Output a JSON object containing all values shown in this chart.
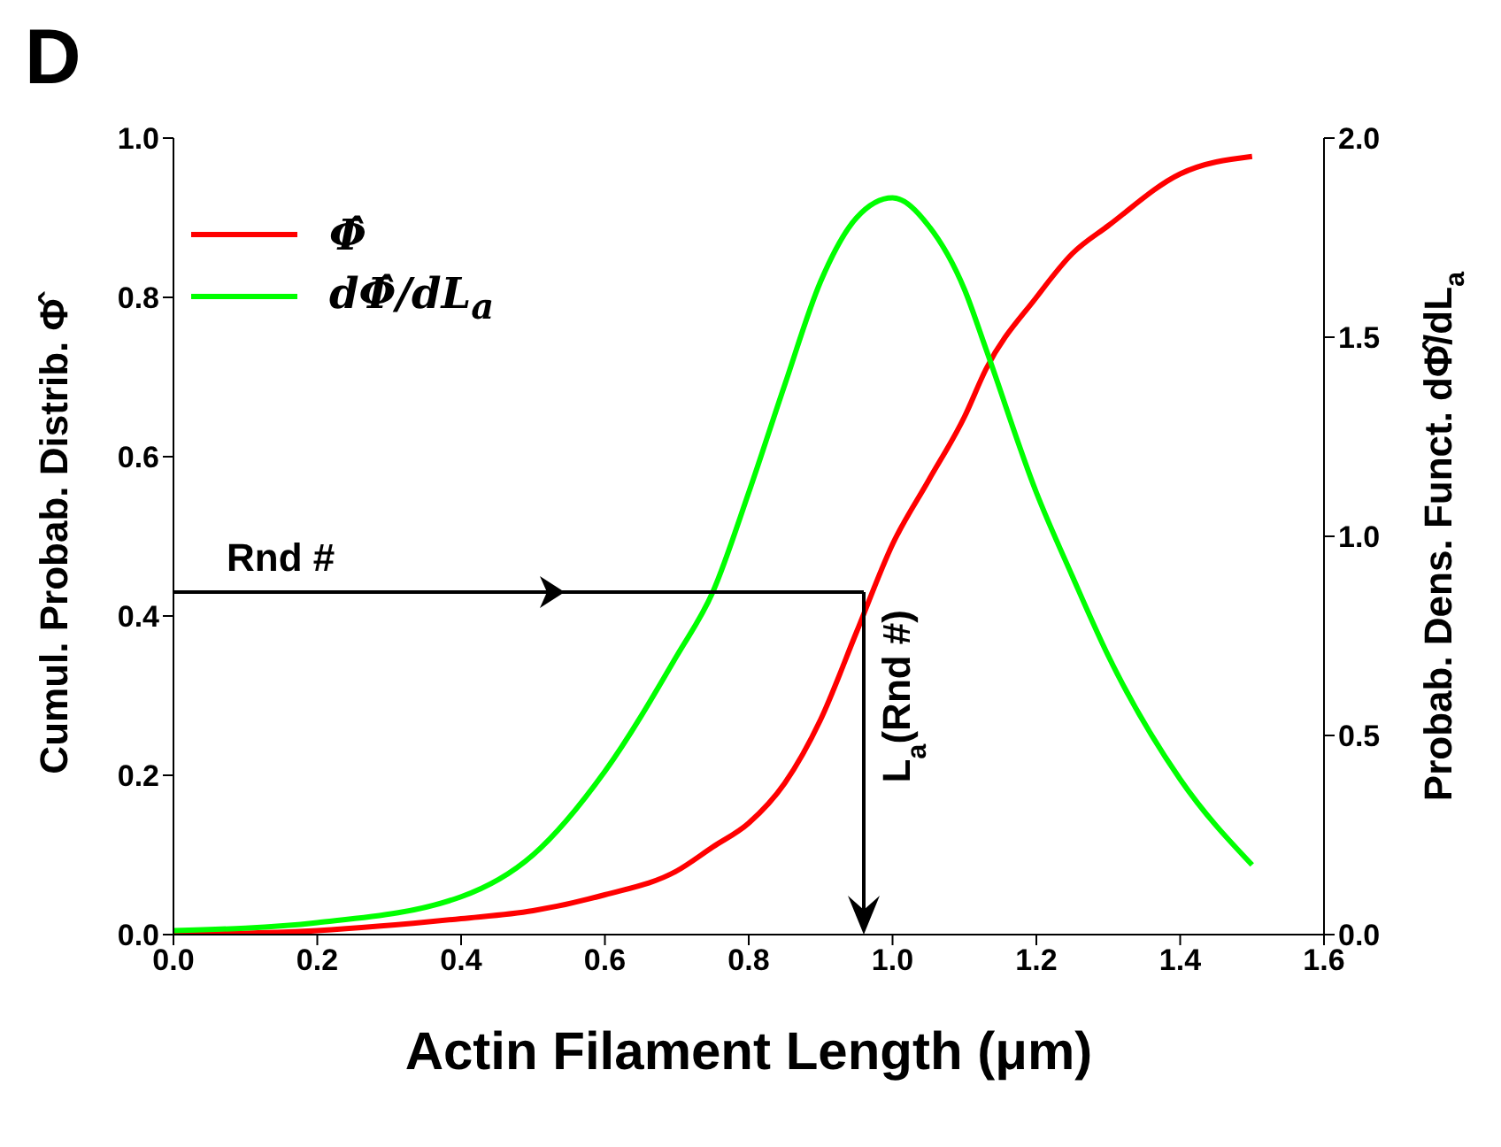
{
  "chart_data": {
    "type": "line",
    "title": "D",
    "xlabel": "Actin Filament Length (μm)",
    "ylabel": "Cumul. Probab. Distrib. Φ̂",
    "y2label": "Probab. Dens. Funct. dΦ̂/dL$_{a}$",
    "x": [
      0,
      0.2,
      0.4,
      0.5,
      0.6,
      0.7,
      0.75,
      0.8,
      0.85,
      0.9,
      0.95,
      1.0,
      1.05,
      1.1,
      1.13,
      1.2,
      1.25,
      1.3,
      1.4,
      1.5
    ],
    "series": [
      {
        "name": "Φ̂",
        "color": "#ff0000",
        "values": [
          0,
          0.005,
          0.02,
          0.03,
          0.05,
          0.08,
          0.11,
          0.14,
          0.19,
          0.27,
          0.38,
          0.49,
          0.57,
          0.65,
          0.71,
          0.8,
          0.855,
          0.89,
          0.955,
          0.977
        ]
      },
      {
        "name": "dΦ̂/dL$_{a}$",
        "color": "#00ff00",
        "axis": "y2",
        "values": [
          0.01,
          0.03,
          0.095,
          0.2,
          0.41,
          0.7,
          0.86,
          1.11,
          1.38,
          1.64,
          1.8,
          1.85,
          1.78,
          1.62,
          1.47,
          1.11,
          0.9,
          0.7,
          0.39,
          0.175
        ]
      }
    ],
    "xlim": [
      0,
      1.6
    ],
    "xticks": [
      {
        "value": 0,
        "label": "0.0"
      },
      {
        "value": 0.2,
        "label": "0.2"
      },
      {
        "value": 0.4,
        "label": "0.4"
      },
      {
        "value": 0.6,
        "label": "0.6"
      },
      {
        "value": 0.8,
        "label": "0.8"
      },
      {
        "value": 1,
        "label": "1.0"
      },
      {
        "value": 1.2,
        "label": "1.2"
      },
      {
        "value": 1.4,
        "label": "1.4"
      },
      {
        "value": 1.6,
        "label": "1.6"
      }
    ],
    "ylim": [
      0,
      1
    ],
    "yticks": [
      {
        "value": 0,
        "label": "0.0"
      },
      {
        "value": 0.2,
        "label": "0.2"
      },
      {
        "value": 0.4,
        "label": "0.4"
      },
      {
        "value": 0.6,
        "label": "0.6"
      },
      {
        "value": 0.8,
        "label": "0.8"
      },
      {
        "value": 1,
        "label": "1.0"
      }
    ],
    "y2lim": [
      0,
      2
    ],
    "y2ticks": [
      {
        "value": 0,
        "label": "0.0"
      },
      {
        "value": 0.5,
        "label": "0.5"
      },
      {
        "value": 1,
        "label": "1.0"
      },
      {
        "value": 1.5,
        "label": "1.5"
      },
      {
        "value": 2,
        "label": "2.0"
      }
    ],
    "ref_lines": [
      {
        "axis": "y",
        "value": 0.43,
        "label": "Rnd #",
        "color": "#000000"
      },
      {
        "axis": "x",
        "value": 0.96,
        "label": "L$_{a}$(Rnd #)",
        "color": "#000000"
      }
    ],
    "legend": "top left",
    "grid": false,
    "marker": "none",
    "line_style": "solid"
  }
}
